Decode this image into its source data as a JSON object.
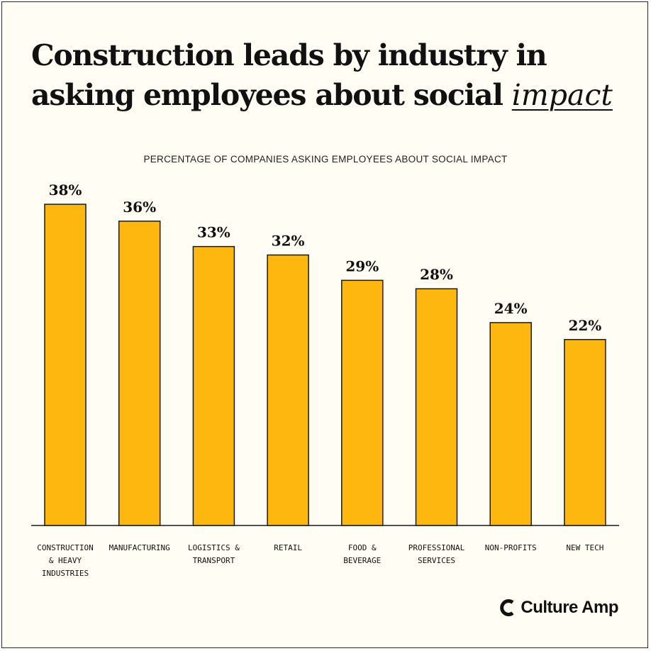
{
  "title": {
    "main": "Construction leads by industry in asking employees about social",
    "accent": "impact"
  },
  "subtitle": "PERCENTAGE OF COMPANIES ASKING EMPLOYEES ABOUT SOCIAL IMPACT",
  "brand": {
    "name": "Culture Amp",
    "icon": "culture-amp-logo-icon"
  },
  "colors": {
    "bar": "#FDB70F",
    "bar_stroke": "#1a1a1a",
    "background": "#FFFDF4",
    "text": "#111111"
  },
  "chart_data": {
    "type": "bar",
    "title": "PERCENTAGE OF COMPANIES ASKING EMPLOYEES ABOUT SOCIAL IMPACT",
    "xlabel": "",
    "ylabel": "",
    "ylim": [
      0,
      40
    ],
    "grid": false,
    "categories": [
      [
        "CONSTRUCTION",
        "& HEAVY",
        "INDUSTRIES"
      ],
      [
        "MANUFACTURING"
      ],
      [
        "LOGISTICS &",
        "TRANSPORT"
      ],
      [
        "RETAIL"
      ],
      [
        "FOOD &",
        "BEVERAGE"
      ],
      [
        "PROFESSIONAL",
        "SERVICES"
      ],
      [
        "NON-PROFITS"
      ],
      [
        "NEW TECH"
      ]
    ],
    "values": [
      38,
      36,
      33,
      32,
      29,
      28,
      24,
      22
    ],
    "labels": [
      "38%",
      "36%",
      "33%",
      "32%",
      "29%",
      "28%",
      "24%",
      "22%"
    ]
  }
}
